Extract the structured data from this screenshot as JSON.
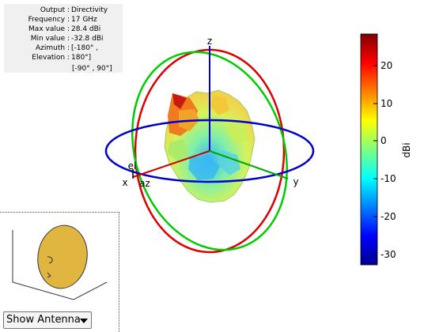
{
  "info": {
    "rows": [
      {
        "key": "Output :",
        "value": "Directivity"
      },
      {
        "key": "Frequency :",
        "value": "17 GHz"
      },
      {
        "key": "Max value :",
        "value": "28.4 dBi"
      },
      {
        "key": "Min value :",
        "value": "-32.8 dBi"
      },
      {
        "key": "Azimuth :",
        "value": "[-180° ,"
      },
      {
        "key": "Elevation :",
        "value": "180°]"
      }
    ],
    "extra": "[-90° , 90°]"
  },
  "axes": {
    "z": "z",
    "x": "x",
    "y": "y",
    "az": "az",
    "el": "el"
  },
  "colorbar": {
    "unit": "dBi",
    "ticks": [
      "20",
      "10",
      "0",
      "-10",
      "-20",
      "-30"
    ],
    "range": [
      -32.8,
      28.4
    ],
    "colormap": "jet"
  },
  "colors": {
    "ring_xy": "#0000cc",
    "ring_xz": "#dd0000",
    "ring_yz": "#00cc00",
    "antenna": "#e0b640"
  },
  "control": {
    "label": "Show Antenna"
  }
}
